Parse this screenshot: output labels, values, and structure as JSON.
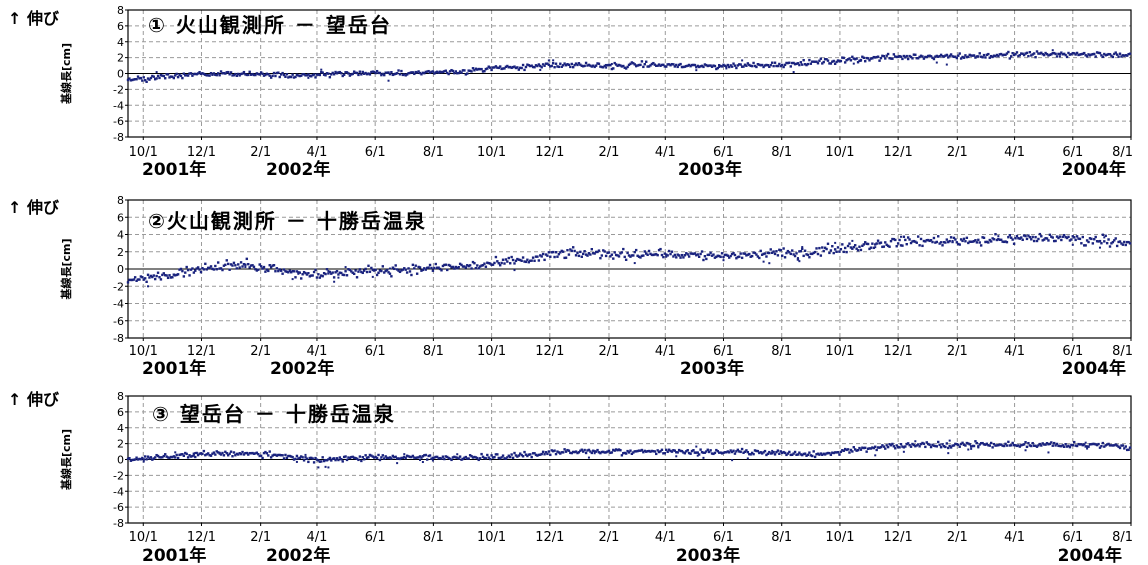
{
  "common": {
    "arrow_label": "↑ 伸び",
    "ylabel": "基線長[cm]",
    "yticks": [
      8,
      6,
      4,
      2,
      0,
      -2,
      -4,
      -6,
      -8
    ],
    "xticks": [
      "10/1",
      "12/1",
      "2/1",
      "4/1",
      "6/1",
      "8/1",
      "10/1",
      "12/1",
      "2/1",
      "4/1",
      "6/1",
      "8/1",
      "10/1",
      "12/1",
      "2/1",
      "4/1",
      "6/1",
      "8/1"
    ],
    "years": [
      "2001年",
      "2002年",
      "2003年",
      "2004年"
    ]
  },
  "colors": {
    "point": "#1a237e",
    "grid": "#9a9a9a",
    "frame": "#000000"
  },
  "chart_data": [
    {
      "type": "scatter",
      "title": "① 火山観測所 － 望岳台",
      "xlabel": "",
      "ylabel": "基線長[cm]",
      "ylim": [
        -8,
        8
      ],
      "xlim": [
        "2001-09-15",
        "2004-08-01"
      ],
      "grid": true,
      "marker_color": "#1a237e",
      "series": [
        {
          "x": [
            "2001-09-15",
            "2001-10-15",
            "2001-11-15",
            "2001-12-15",
            "2002-01-15",
            "2002-02-15",
            "2002-03-15",
            "2002-04-15",
            "2002-05-15",
            "2002-06-15",
            "2002-07-15",
            "2002-08-15",
            "2002-09-15",
            "2002-10-15",
            "2002-11-15",
            "2002-12-15",
            "2003-01-15",
            "2003-02-15",
            "2003-03-15",
            "2003-04-15",
            "2003-05-15",
            "2003-06-15",
            "2003-07-15",
            "2003-08-15",
            "2003-09-15",
            "2003-10-15",
            "2003-11-15",
            "2003-12-15",
            "2004-01-15",
            "2004-02-15",
            "2004-03-15",
            "2004-04-15",
            "2004-05-15",
            "2004-06-15",
            "2004-07-15",
            "2004-07-31"
          ],
          "y": [
            -0.8,
            -0.5,
            -0.2,
            0.0,
            0.0,
            -0.2,
            -0.2,
            -0.1,
            0.0,
            0.0,
            0.1,
            0.2,
            0.4,
            0.7,
            1.0,
            1.0,
            1.0,
            1.0,
            1.1,
            1.0,
            0.9,
            1.0,
            1.1,
            1.2,
            1.5,
            1.8,
            2.0,
            2.1,
            2.2,
            2.2,
            2.3,
            2.4,
            2.5,
            2.4,
            2.4,
            2.3
          ]
        }
      ]
    },
    {
      "type": "scatter",
      "title": "②火山観測所 － 十勝岳温泉",
      "xlabel": "",
      "ylabel": "基線長[cm]",
      "ylim": [
        -8,
        8
      ],
      "xlim": [
        "2001-09-15",
        "2004-08-01"
      ],
      "grid": true,
      "marker_color": "#1a237e",
      "series": [
        {
          "x": [
            "2001-09-15",
            "2001-10-15",
            "2001-11-15",
            "2001-12-15",
            "2002-01-15",
            "2002-02-15",
            "2002-03-15",
            "2002-04-15",
            "2002-05-15",
            "2002-06-15",
            "2002-07-15",
            "2002-08-15",
            "2002-09-15",
            "2002-10-15",
            "2002-11-15",
            "2002-12-15",
            "2003-01-15",
            "2003-02-15",
            "2003-03-15",
            "2003-04-15",
            "2003-05-15",
            "2003-06-15",
            "2003-07-15",
            "2003-08-15",
            "2003-09-15",
            "2003-10-15",
            "2003-11-15",
            "2003-12-15",
            "2004-01-15",
            "2004-02-15",
            "2004-03-15",
            "2004-04-15",
            "2004-05-15",
            "2004-06-15",
            "2004-07-15",
            "2004-07-31"
          ],
          "y": [
            -1.2,
            -1.0,
            -0.3,
            0.3,
            0.5,
            0.0,
            -0.5,
            -0.5,
            -0.3,
            -0.1,
            0.0,
            0.2,
            0.4,
            0.7,
            1.2,
            1.8,
            1.8,
            1.7,
            1.8,
            1.7,
            1.5,
            1.6,
            1.7,
            1.8,
            2.2,
            2.6,
            3.0,
            3.2,
            3.3,
            3.3,
            3.4,
            3.6,
            3.6,
            3.4,
            3.3,
            3.1
          ]
        }
      ]
    },
    {
      "type": "scatter",
      "title": "③ 望岳台 － 十勝岳温泉",
      "xlabel": "",
      "ylabel": "基線長[cm]",
      "ylim": [
        -8,
        8
      ],
      "xlim": [
        "2001-09-15",
        "2004-08-01"
      ],
      "grid": true,
      "marker_color": "#1a237e",
      "series": [
        {
          "x": [
            "2001-09-15",
            "2001-10-15",
            "2001-11-15",
            "2001-12-15",
            "2002-01-15",
            "2002-02-15",
            "2002-03-15",
            "2002-04-15",
            "2002-05-15",
            "2002-06-15",
            "2002-07-15",
            "2002-08-15",
            "2002-09-15",
            "2002-10-15",
            "2002-11-15",
            "2002-12-15",
            "2003-01-15",
            "2003-02-15",
            "2003-03-15",
            "2003-04-15",
            "2003-05-15",
            "2003-06-15",
            "2003-07-15",
            "2003-08-15",
            "2003-09-15",
            "2003-10-15",
            "2003-11-15",
            "2003-12-15",
            "2004-01-15",
            "2004-02-15",
            "2004-03-15",
            "2004-04-15",
            "2004-05-15",
            "2004-06-15",
            "2004-07-15",
            "2004-07-31"
          ],
          "y": [
            0.0,
            0.3,
            0.6,
            0.8,
            0.8,
            0.5,
            0.1,
            0.0,
            0.2,
            0.3,
            0.3,
            0.2,
            0.3,
            0.4,
            0.7,
            1.0,
            1.0,
            0.9,
            1.0,
            1.0,
            0.9,
            1.0,
            0.9,
            0.6,
            0.7,
            1.2,
            1.6,
            1.8,
            1.8,
            1.9,
            1.9,
            1.9,
            1.8,
            1.8,
            1.7,
            1.4
          ]
        }
      ]
    }
  ]
}
